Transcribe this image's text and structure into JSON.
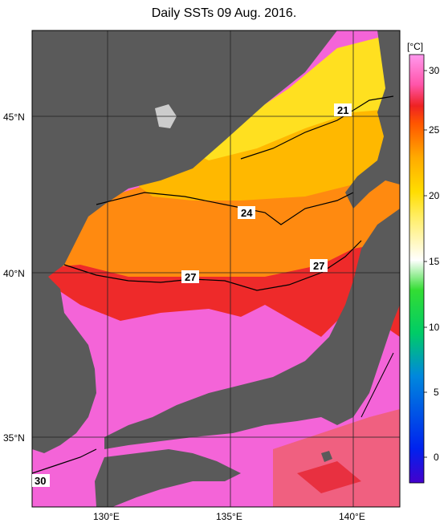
{
  "title": "Daily SSTs 09 Aug. 2016.",
  "map": {
    "lat_labels": [
      "45°N",
      "40°N",
      "35°N"
    ],
    "lon_labels": [
      "130°E",
      "135°E",
      "140°E"
    ],
    "contour_labels": [
      "21",
      "24",
      "27",
      "27",
      "30"
    ]
  },
  "colorbar": {
    "unit": "[°C]",
    "ticks": [
      "30",
      "25",
      "20",
      "15",
      "10",
      "5",
      "0"
    ]
  },
  "colors": {
    "land": "#5a5a5a",
    "sea_warm": "#ff55cc",
    "sea_27": "#ee2222",
    "sea_24": "#ff8800",
    "sea_21": "#ffdd00"
  }
}
